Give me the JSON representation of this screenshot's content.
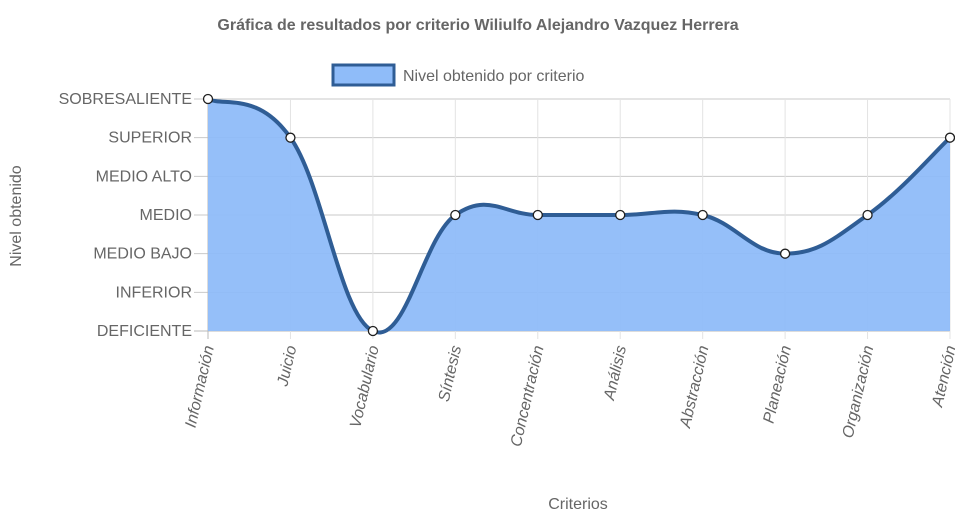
{
  "chart_data": {
    "type": "line",
    "title": "Gráfica de resultados por criterio Wiliulfo Alejandro Vazquez Herrera",
    "xlabel": "Criterios",
    "ylabel": "Nivel obtenido",
    "categories": [
      "Información",
      "Juicio",
      "Vocabulario",
      "Síntesis",
      "Concentración",
      "Análisis",
      "Abstracción",
      "Planeación",
      "Organización",
      "Atención"
    ],
    "y_levels": [
      "DEFICIENTE",
      "INFERIOR",
      "MEDIO BAJO",
      "MEDIO",
      "MEDIO ALTO",
      "SUPERIOR",
      "SOBRESALIENTE"
    ],
    "ylim": [
      0,
      6
    ],
    "series": [
      {
        "name": "Nivel obtenido por criterio",
        "values": [
          6,
          5,
          0,
          3,
          3,
          3,
          3,
          2,
          3,
          5
        ],
        "fill": true,
        "line_color": "#2f5d95",
        "fill_color": "#8fbcf9"
      }
    ],
    "legend_position": "top",
    "grid": true
  }
}
